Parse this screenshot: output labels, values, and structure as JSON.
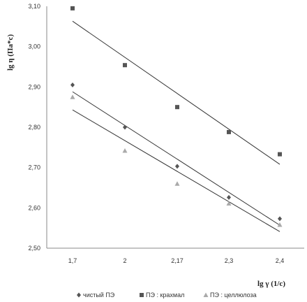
{
  "chart_data": {
    "type": "scatter",
    "xlabel": "lg γ (1/c)",
    "ylabel": "lg η (Па*с)",
    "x_categories": [
      "1,7",
      "2",
      "2,17",
      "2,3",
      "2,4"
    ],
    "y_ticks": [
      "2,50",
      "2,60",
      "2,70",
      "2,80",
      "2,90",
      "3,00",
      "3,10"
    ],
    "ylim": [
      2.5,
      3.1
    ],
    "grid": false,
    "legend_position": "bottom",
    "series": [
      {
        "name": "чистый ПЭ",
        "marker": "diamond",
        "color": "#555555",
        "values": [
          2.905,
          2.8,
          2.703,
          2.626,
          2.573
        ],
        "trend": [
          2.888,
          2.557
        ]
      },
      {
        "name": "ПЭ : крахмал",
        "marker": "square",
        "color": "#555555",
        "values": [
          3.095,
          2.954,
          2.85,
          2.788,
          2.733
        ],
        "trend": [
          3.063,
          2.708
        ]
      },
      {
        "name": "ПЭ : целлюлоза",
        "marker": "triangle",
        "color": "#aaaaaa",
        "values": [
          2.875,
          2.742,
          2.66,
          2.611,
          2.558
        ],
        "trend": [
          2.843,
          2.541
        ]
      }
    ]
  }
}
